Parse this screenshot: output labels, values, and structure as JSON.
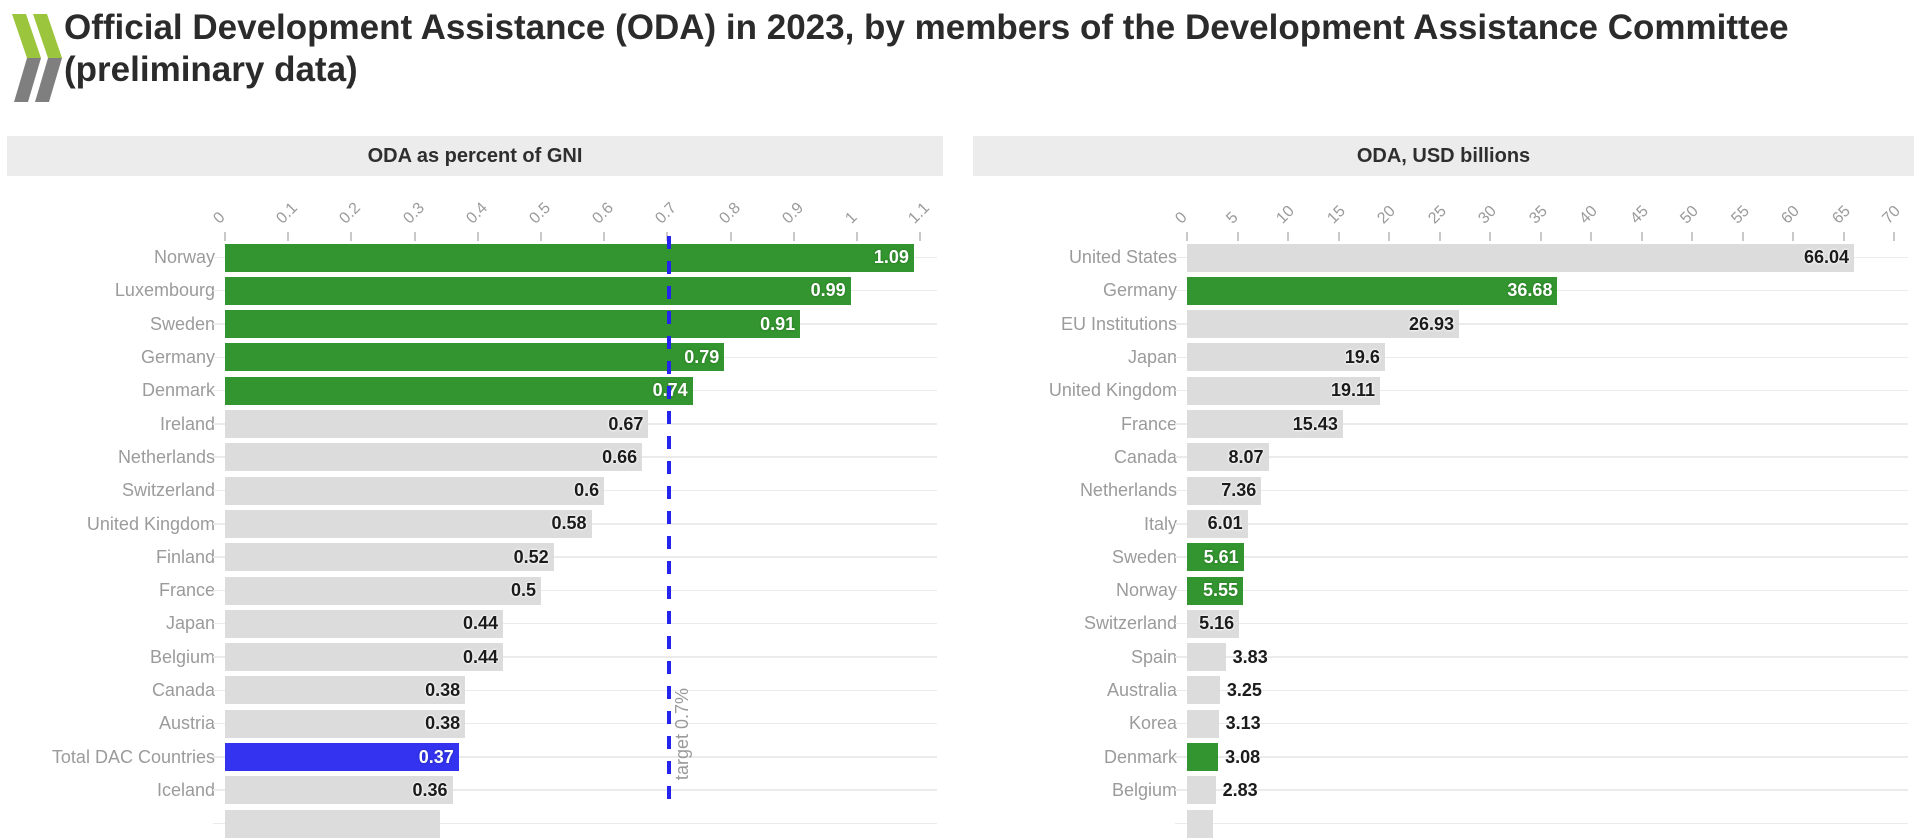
{
  "page_title": "Official Development Assistance (ODA) in 2023, by members of the Development Assistance Committee (preliminary data)",
  "logo": {
    "name": "oecd-chevrons",
    "green": "#9bc53d",
    "gray": "#7f7f7f"
  },
  "colors": {
    "green_bar": "#33952f",
    "gray_bar": "#dcdcdc",
    "blue_bar": "#3333f0",
    "target_line_blue": "#2424ee",
    "header_band_bg": "#ececec",
    "axis_label_gray": "#9b9b9b",
    "value_dark": "#1b1b1b",
    "title_dark": "#2b2b2b"
  },
  "chart_data": [
    {
      "type": "bar",
      "orientation": "horizontal",
      "title": "ODA as percent of GNI",
      "xlabel": "",
      "ylabel": "",
      "xlim": [
        0,
        1.1
      ],
      "grid": "horizontal-row-lines",
      "tick_labels": [
        "0",
        "0.1",
        "0.2",
        "0.3",
        "0.4",
        "0.5",
        "0.6",
        "0.7",
        "0.8",
        "0.9",
        "1",
        "1.1"
      ],
      "target_line": {
        "value": 0.7,
        "label": "target 0.7%"
      },
      "rows": [
        {
          "label": "Norway",
          "value": "1.09",
          "color": "green"
        },
        {
          "label": "Luxembourg",
          "value": "0.99",
          "color": "green"
        },
        {
          "label": "Sweden",
          "value": "0.91",
          "color": "green"
        },
        {
          "label": "Germany",
          "value": "0.79",
          "color": "green"
        },
        {
          "label": "Denmark",
          "value": "0.74",
          "color": "green"
        },
        {
          "label": "Ireland",
          "value": "0.67",
          "color": "gray"
        },
        {
          "label": "Netherlands",
          "value": "0.66",
          "color": "gray"
        },
        {
          "label": "Switzerland",
          "value": "0.6",
          "color": "gray"
        },
        {
          "label": "United Kingdom",
          "value": "0.58",
          "color": "gray"
        },
        {
          "label": "Finland",
          "value": "0.52",
          "color": "gray"
        },
        {
          "label": "France",
          "value": "0.5",
          "color": "gray"
        },
        {
          "label": "Japan",
          "value": "0.44",
          "color": "gray"
        },
        {
          "label": "Belgium",
          "value": "0.44",
          "color": "gray"
        },
        {
          "label": "Canada",
          "value": "0.38",
          "color": "gray"
        },
        {
          "label": "Austria",
          "value": "0.38",
          "color": "gray"
        },
        {
          "label": "Total DAC Countries",
          "value": "0.37",
          "color": "blue"
        },
        {
          "label": "Iceland",
          "value": "0.36",
          "color": "gray"
        },
        {
          "label": "",
          "value": "",
          "numeric": 0.34,
          "color": "gray",
          "cutoff": true
        }
      ]
    },
    {
      "type": "bar",
      "orientation": "horizontal",
      "title": "ODA, USD billions",
      "xlabel": "",
      "ylabel": "",
      "xlim": [
        0,
        70
      ],
      "grid": "horizontal-row-lines",
      "tick_labels": [
        "0",
        "5",
        "10",
        "15",
        "20",
        "25",
        "30",
        "35",
        "40",
        "45",
        "50",
        "55",
        "60",
        "65",
        "70"
      ],
      "rows": [
        {
          "label": "United States",
          "value": "66.04",
          "color": "gray"
        },
        {
          "label": "Germany",
          "value": "36.68",
          "color": "green"
        },
        {
          "label": "EU Institutions",
          "value": "26.93",
          "color": "gray"
        },
        {
          "label": "Japan",
          "value": "19.6",
          "color": "gray"
        },
        {
          "label": "United Kingdom",
          "value": "19.11",
          "color": "gray"
        },
        {
          "label": "France",
          "value": "15.43",
          "color": "gray"
        },
        {
          "label": "Canada",
          "value": "8.07",
          "color": "gray"
        },
        {
          "label": "Netherlands",
          "value": "7.36",
          "color": "gray"
        },
        {
          "label": "Italy",
          "value": "6.01",
          "color": "gray"
        },
        {
          "label": "Sweden",
          "value": "5.61",
          "color": "green"
        },
        {
          "label": "Norway",
          "value": "5.55",
          "color": "green"
        },
        {
          "label": "Switzerland",
          "value": "5.16",
          "color": "gray"
        },
        {
          "label": "Spain",
          "value": "3.83",
          "color": "gray"
        },
        {
          "label": "Australia",
          "value": "3.25",
          "color": "gray"
        },
        {
          "label": "Korea",
          "value": "3.13",
          "color": "gray"
        },
        {
          "label": "Denmark",
          "value": "3.08",
          "color": "green"
        },
        {
          "label": "Belgium",
          "value": "2.83",
          "color": "gray"
        },
        {
          "label": "",
          "value": "",
          "numeric": 2.6,
          "color": "gray",
          "cutoff": true
        }
      ]
    }
  ]
}
